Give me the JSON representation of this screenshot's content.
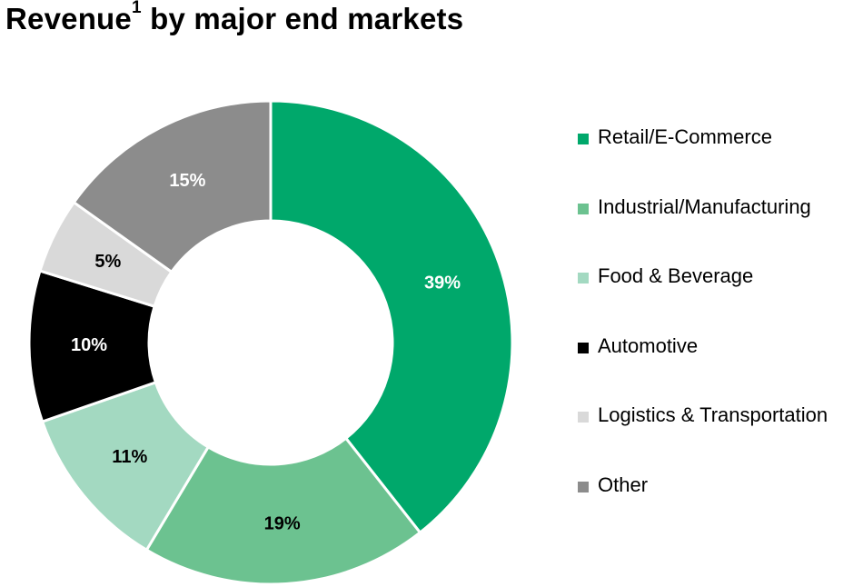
{
  "title": {
    "main": "Revenue",
    "superscript": "1",
    "rest": " by major end markets"
  },
  "chart_data": {
    "type": "pie",
    "style": "donut",
    "title": "Revenue1 by major end markets",
    "legend_position": "right",
    "categories": [
      "Retail/E-Commerce",
      "Industrial/Manufacturing",
      "Food & Beverage",
      "Automotive",
      "Logistics & Transportation",
      "Other"
    ],
    "values": [
      39,
      19,
      11,
      10,
      5,
      15
    ],
    "labels": [
      "39%",
      "19%",
      "11%",
      "10%",
      "5%",
      "15%"
    ],
    "colors": [
      "#00a86b",
      "#6cc290",
      "#a3d9c1",
      "#000000",
      "#d9d9d9",
      "#8c8c8c"
    ],
    "label_colors": [
      "#ffffff",
      "#000000",
      "#000000",
      "#ffffff",
      "#000000",
      "#ffffff"
    ],
    "unit": "%"
  }
}
